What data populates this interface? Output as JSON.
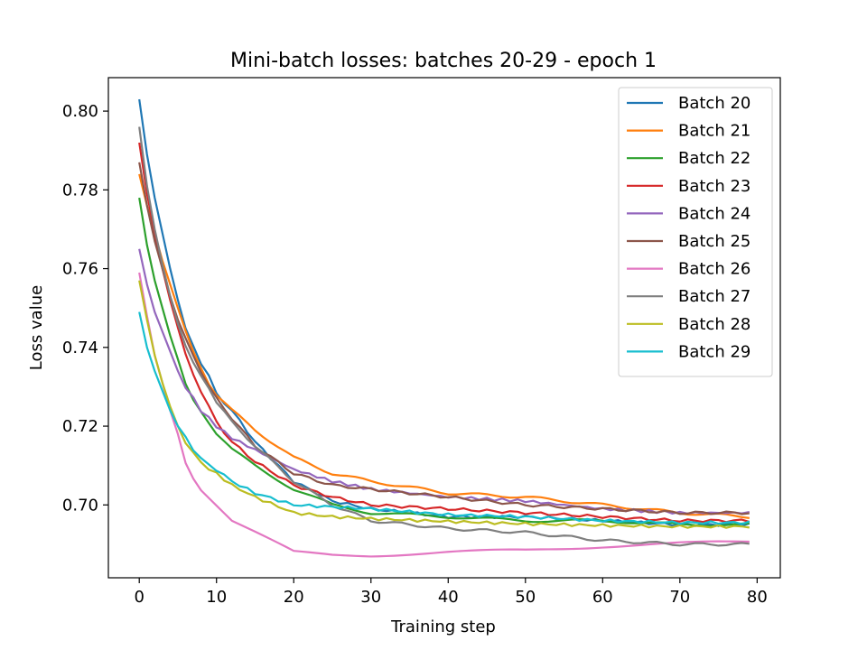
{
  "chart_data": {
    "type": "line",
    "title": "Mini-batch losses: batches 20-29 - epoch 1",
    "xlabel": "Training step",
    "ylabel": "Loss value",
    "xlim": [
      -4,
      83
    ],
    "ylim": [
      0.6815,
      0.8085
    ],
    "xticks": [
      0,
      10,
      20,
      30,
      40,
      50,
      60,
      70,
      80
    ],
    "yticks": [
      0.7,
      0.72,
      0.74,
      0.76,
      0.78,
      0.8
    ],
    "grid": false,
    "legend_position": "top-right",
    "x_keys": [
      0,
      1,
      2,
      3,
      4,
      5,
      6,
      7,
      8,
      9,
      10,
      12,
      15,
      20,
      25,
      30,
      40,
      50,
      60,
      70,
      79
    ],
    "series": [
      {
        "name": "Batch 20",
        "color": "#1f77b4",
        "values": [
          0.803,
          0.789,
          0.778,
          0.769,
          0.76,
          0.752,
          0.745,
          0.74,
          0.736,
          0.733,
          0.728,
          0.724,
          0.716,
          0.706,
          0.701,
          0.699,
          0.697,
          0.697,
          0.696,
          0.695,
          0.695
        ]
      },
      {
        "name": "Batch 21",
        "color": "#ff7f0e",
        "values": [
          0.784,
          0.776,
          0.769,
          0.762,
          0.756,
          0.75,
          0.744,
          0.739,
          0.735,
          0.731,
          0.728,
          0.724,
          0.719,
          0.712,
          0.708,
          0.706,
          0.703,
          0.702,
          0.7,
          0.698,
          0.697
        ]
      },
      {
        "name": "Batch 22",
        "color": "#2ca02c",
        "values": [
          0.778,
          0.766,
          0.757,
          0.75,
          0.743,
          0.737,
          0.731,
          0.727,
          0.724,
          0.721,
          0.718,
          0.714,
          0.71,
          0.704,
          0.7,
          0.698,
          0.697,
          0.696,
          0.696,
          0.695,
          0.695
        ]
      },
      {
        "name": "Batch 23",
        "color": "#d62728",
        "values": [
          0.792,
          0.779,
          0.769,
          0.76,
          0.752,
          0.745,
          0.738,
          0.733,
          0.729,
          0.725,
          0.721,
          0.716,
          0.711,
          0.705,
          0.702,
          0.7,
          0.699,
          0.698,
          0.697,
          0.696,
          0.696
        ]
      },
      {
        "name": "Batch 24",
        "color": "#9467bd",
        "values": [
          0.765,
          0.756,
          0.749,
          0.744,
          0.739,
          0.734,
          0.73,
          0.727,
          0.724,
          0.722,
          0.72,
          0.717,
          0.714,
          0.709,
          0.706,
          0.704,
          0.702,
          0.701,
          0.699,
          0.698,
          0.698
        ]
      },
      {
        "name": "Batch 25",
        "color": "#8c564b",
        "values": [
          0.787,
          0.776,
          0.767,
          0.76,
          0.753,
          0.747,
          0.742,
          0.738,
          0.734,
          0.73,
          0.727,
          0.722,
          0.715,
          0.708,
          0.705,
          0.704,
          0.702,
          0.7,
          0.699,
          0.698,
          0.698
        ]
      },
      {
        "name": "Batch 26",
        "color": "#e377c2",
        "values": [
          0.759,
          0.748,
          0.738,
          0.731,
          0.724,
          0.718,
          0.711,
          0.707,
          0.704,
          0.702,
          0.7,
          0.696,
          0.693,
          0.688,
          0.6873,
          0.6872,
          0.688,
          0.6885,
          0.6895,
          0.6902,
          0.6907
        ]
      },
      {
        "name": "Batch 27",
        "color": "#7f7f7f",
        "values": [
          0.796,
          0.781,
          0.77,
          0.761,
          0.753,
          0.746,
          0.74,
          0.736,
          0.733,
          0.73,
          0.726,
          0.721,
          0.715,
          0.706,
          0.7,
          0.696,
          0.694,
          0.693,
          0.691,
          0.69,
          0.69
        ]
      },
      {
        "name": "Batch 28",
        "color": "#bcbd22",
        "values": [
          0.757,
          0.747,
          0.738,
          0.731,
          0.725,
          0.72,
          0.716,
          0.713,
          0.711,
          0.709,
          0.708,
          0.705,
          0.702,
          0.698,
          0.697,
          0.6965,
          0.6958,
          0.6952,
          0.6948,
          0.6945,
          0.6945
        ]
      },
      {
        "name": "Batch 29",
        "color": "#17becf",
        "values": [
          0.749,
          0.74,
          0.734,
          0.729,
          0.724,
          0.72,
          0.717,
          0.714,
          0.712,
          0.71,
          0.709,
          0.706,
          0.703,
          0.7,
          0.6995,
          0.699,
          0.6975,
          0.697,
          0.696,
          0.6955,
          0.6955
        ]
      }
    ]
  }
}
